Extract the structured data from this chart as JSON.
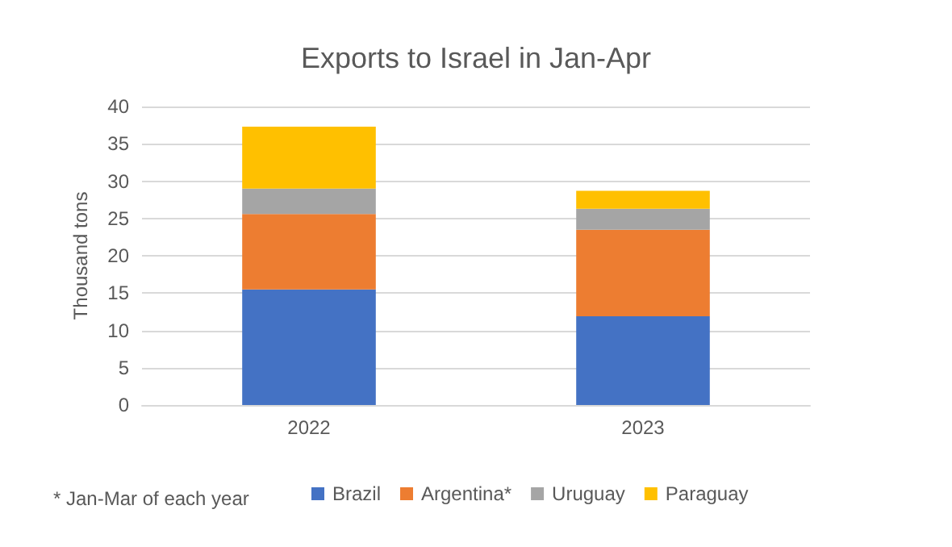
{
  "chart_data": {
    "type": "bar",
    "title": "Exports to Israel in Jan-Apr",
    "ylabel": "Thousand tons",
    "categories": [
      "2022",
      "2023"
    ],
    "stacked": true,
    "series": [
      {
        "name": "Brazil",
        "color": "#4472c4",
        "values": [
          15.5,
          11.9
        ]
      },
      {
        "name": "Argentina*",
        "color": "#ed7d31",
        "values": [
          10.1,
          11.6
        ]
      },
      {
        "name": "Uruguay",
        "color": "#a5a5a5",
        "values": [
          3.4,
          2.8
        ]
      },
      {
        "name": "Paraguay",
        "color": "#ffc000",
        "values": [
          8.3,
          2.4
        ]
      }
    ],
    "ylim": [
      0,
      40
    ],
    "yticks": [
      0,
      5,
      10,
      15,
      20,
      25,
      30,
      35,
      40
    ],
    "grid": "y",
    "legend": "bottom",
    "annotations": [
      "* Jan-Mar of each year"
    ]
  }
}
